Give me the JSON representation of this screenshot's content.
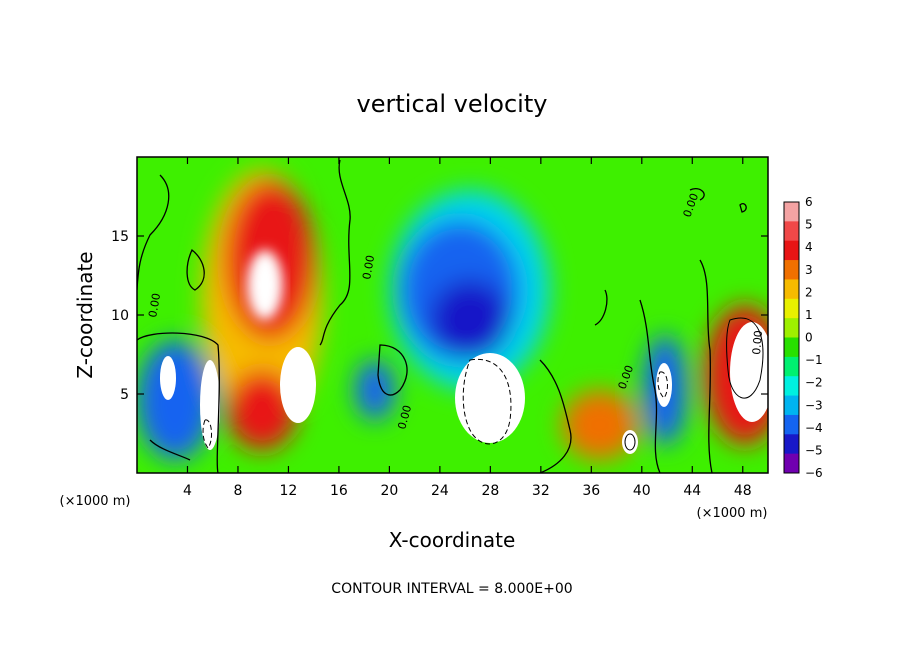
{
  "chart_data": {
    "type": "heatmap",
    "title": "vertical velocity",
    "xlabel": "X-coordinate",
    "ylabel": "Z-coordinate",
    "x_unit_left": "(×1000 m)",
    "x_unit_right": "(×1000 m)",
    "footer": "CONTOUR INTERVAL = 8.000E+00",
    "xlim": [
      0,
      50
    ],
    "ylim": [
      0,
      20
    ],
    "xticks": [
      4,
      8,
      12,
      16,
      20,
      24,
      28,
      32,
      36,
      40,
      44,
      48
    ],
    "yticks": [
      5,
      10,
      15
    ],
    "colorbar": {
      "ticks": [
        6,
        5,
        4,
        3,
        2,
        1,
        0,
        -1,
        -2,
        -3,
        -4,
        -5,
        -6
      ],
      "colors": [
        "#f4a3a3",
        "#f04848",
        "#e81515",
        "#f07000",
        "#f6bb00",
        "#e8f000",
        "#9ef000",
        "#28e000",
        "#00f070",
        "#00f0e0",
        "#00b4f0",
        "#1464f0",
        "#1818c8",
        "#7000b0"
      ]
    },
    "contour_labels": [
      "0.00",
      "0.00",
      "0.00",
      "0.00",
      "0.00",
      "0.00"
    ],
    "regions": [
      {
        "x": 10,
        "y": 14,
        "value": 5
      },
      {
        "x": 13,
        "y": 6,
        "value": 6
      },
      {
        "x": 9.5,
        "y": 3,
        "value": 4
      },
      {
        "x": 28,
        "y": 11,
        "value": -5
      },
      {
        "x": 28,
        "y": 4,
        "value": -6
      },
      {
        "x": 38.5,
        "y": 2.5,
        "value": 4
      },
      {
        "x": 42,
        "y": 5.5,
        "value": -5
      },
      {
        "x": 48,
        "y": 6,
        "value": 6
      },
      {
        "x": 5.8,
        "y": 4.5,
        "value": -6
      },
      {
        "x": 2,
        "y": 6,
        "value": -5
      }
    ]
  }
}
